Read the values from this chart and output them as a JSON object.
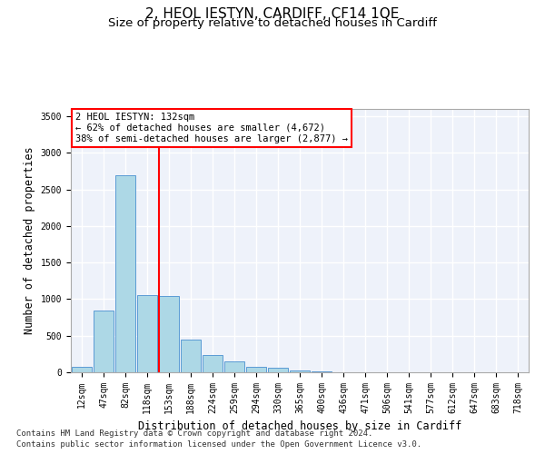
{
  "title": "2, HEOL IESTYN, CARDIFF, CF14 1QE",
  "subtitle": "Size of property relative to detached houses in Cardiff",
  "xlabel": "Distribution of detached houses by size in Cardiff",
  "ylabel": "Number of detached properties",
  "footnote1": "Contains HM Land Registry data © Crown copyright and database right 2024.",
  "footnote2": "Contains public sector information licensed under the Open Government Licence v3.0.",
  "categories": [
    "12sqm",
    "47sqm",
    "82sqm",
    "118sqm",
    "153sqm",
    "188sqm",
    "224sqm",
    "259sqm",
    "294sqm",
    "330sqm",
    "365sqm",
    "400sqm",
    "436sqm",
    "471sqm",
    "506sqm",
    "541sqm",
    "577sqm",
    "612sqm",
    "647sqm",
    "683sqm",
    "718sqm"
  ],
  "values": [
    75,
    850,
    2700,
    1060,
    1040,
    450,
    230,
    145,
    80,
    60,
    20,
    10,
    5,
    5,
    3,
    3,
    2,
    2,
    1,
    1,
    1
  ],
  "bar_color": "#add8e6",
  "bar_edge_color": "#5b9bd5",
  "vline_x": 3.55,
  "vline_color": "red",
  "annotation_text": "2 HEOL IESTYN: 132sqm\n← 62% of detached houses are smaller (4,672)\n38% of semi-detached houses are larger (2,877) →",
  "annotation_box_color": "white",
  "annotation_box_edge": "red",
  "ylim": [
    0,
    3600
  ],
  "yticks": [
    0,
    500,
    1000,
    1500,
    2000,
    2500,
    3000,
    3500
  ],
  "background_color": "#eef2fa",
  "grid_color": "white",
  "title_fontsize": 11,
  "subtitle_fontsize": 9.5,
  "axis_label_fontsize": 8.5,
  "tick_fontsize": 7,
  "annotation_fontsize": 7.5,
  "footnote_fontsize": 6.5
}
